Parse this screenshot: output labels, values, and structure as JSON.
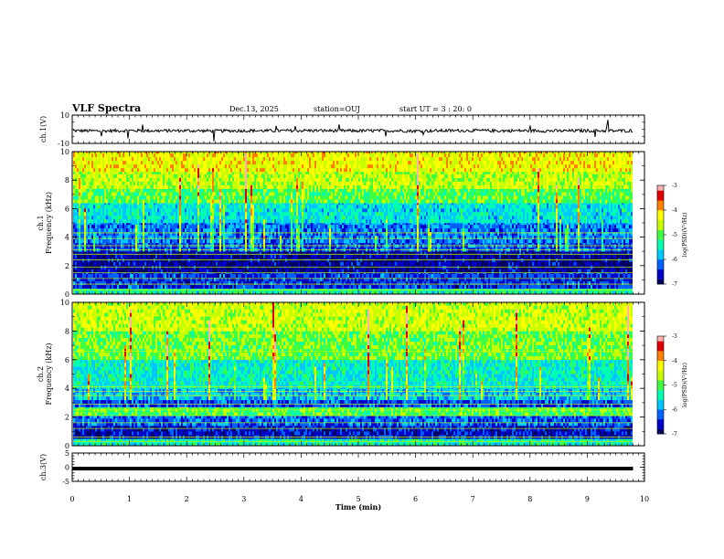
{
  "header": {
    "title": "VLF Spectra",
    "date": "Dec.13, 2025",
    "station": "station=OUJ",
    "start": "start UT =  3 : 20: 0"
  },
  "colors": {
    "colormap": [
      "#000060",
      "#0000c8",
      "#0060ff",
      "#00c8ff",
      "#00ffb0",
      "#40ff40",
      "#c8ff00",
      "#ffff00",
      "#ff8000",
      "#e00000",
      "#ffb0b0"
    ],
    "trace": "#000000",
    "axes": "#000000"
  },
  "chart_data": [
    {
      "type": "line",
      "name": "ch1-waveform",
      "ylabel": "ch.1(V)",
      "yticks": [
        "10",
        "-10"
      ],
      "ylim": [
        -10,
        10
      ],
      "xlim": [
        0,
        10
      ],
      "x": [
        0,
        0.5,
        1,
        1.5,
        2,
        2.5,
        3,
        3.5,
        4,
        4.5,
        5,
        5.5,
        6,
        6.5,
        7,
        7.5,
        8,
        8.5,
        9,
        9.5,
        9.8
      ],
      "y": [
        -1,
        -1.2,
        -0.9,
        -1.1,
        -1,
        -1.2,
        -1,
        -1.1,
        -0.9,
        -1,
        -1.1,
        -1,
        -1.2,
        -1,
        -0.9,
        -1.1,
        -1,
        -1.2,
        -1,
        -1.1,
        -1
      ]
    },
    {
      "type": "heatmap",
      "name": "ch1-spectrogram",
      "ylabel": "ch.1\nFrequency (kHz)",
      "yticks": [
        "0",
        "2",
        "4",
        "6",
        "8",
        "10"
      ],
      "ylim": [
        0,
        10
      ],
      "xlim": [
        0,
        10
      ],
      "colorbar": {
        "label": "log(PSD)(V²/Hz)",
        "ticks": [
          "-3",
          "-4",
          "-5",
          "-6",
          "-7"
        ],
        "range": [
          -7,
          -3
        ]
      },
      "bands": [
        {
          "f": [
            0,
            0.4
          ],
          "level": -5.3
        },
        {
          "f": [
            0.4,
            1.5
          ],
          "level": -6.4
        },
        {
          "f": [
            1.5,
            3.0
          ],
          "level": -6.8
        },
        {
          "f": [
            3.0,
            3.6
          ],
          "level": -6.3
        },
        {
          "f": [
            3.6,
            5.0
          ],
          "level": -6.1
        },
        {
          "f": [
            5.0,
            6.4
          ],
          "level": -5.6
        },
        {
          "f": [
            6.4,
            7.4
          ],
          "level": -5.0
        },
        {
          "f": [
            7.4,
            8.6
          ],
          "level": -4.6
        },
        {
          "f": [
            8.6,
            10
          ],
          "level": -4.3
        }
      ]
    },
    {
      "type": "heatmap",
      "name": "ch2-spectrogram",
      "ylabel": "ch.2\nFrequency (kHz)",
      "yticks": [
        "0",
        "2",
        "4",
        "6",
        "8",
        "10"
      ],
      "ylim": [
        0,
        10
      ],
      "xlim": [
        0,
        10
      ],
      "colorbar": {
        "label": "log(PSD)(V²/Hz)",
        "ticks": [
          "-3",
          "-4",
          "-5",
          "-6",
          "-7"
        ],
        "range": [
          -7,
          -3
        ]
      },
      "bands": [
        {
          "f": [
            0,
            0.5
          ],
          "level": -5.4
        },
        {
          "f": [
            0.5,
            1.4
          ],
          "level": -6.6
        },
        {
          "f": [
            1.4,
            2.1
          ],
          "level": -6.2
        },
        {
          "f": [
            2.1,
            2.7
          ],
          "level": -5.0
        },
        {
          "f": [
            2.7,
            3.2
          ],
          "level": -6.3
        },
        {
          "f": [
            3.2,
            4.0
          ],
          "level": -5.8
        },
        {
          "f": [
            4.0,
            6.0
          ],
          "level": -5.5
        },
        {
          "f": [
            6.0,
            8.0
          ],
          "level": -4.9
        },
        {
          "f": [
            8.0,
            10
          ],
          "level": -4.5
        }
      ]
    },
    {
      "type": "line",
      "name": "ch3-waveform",
      "ylabel": "ch.3(V)",
      "yticks": [
        "5",
        "0",
        "-5"
      ],
      "ylim": [
        -5,
        5
      ],
      "xlim": [
        0,
        10
      ],
      "x": [
        0,
        9.8
      ],
      "y": [
        -0.5,
        -0.5
      ]
    }
  ],
  "xaxis": {
    "label": "Time (min)",
    "ticks": [
      "0",
      "1",
      "2",
      "3",
      "4",
      "5",
      "6",
      "7",
      "8",
      "9",
      "10"
    ]
  }
}
